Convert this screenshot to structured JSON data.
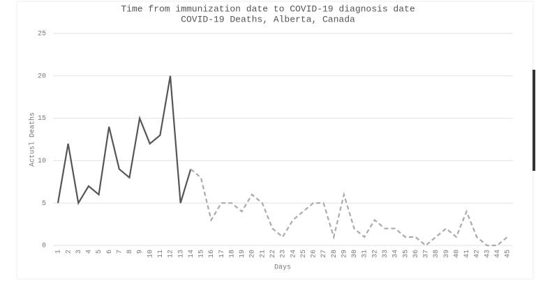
{
  "chart_data": {
    "type": "line",
    "title": "Time from immunization date to COVID-19 diagnosis date",
    "subtitle": "COVID-19 Deaths, Alberta, Canada",
    "x_label": "Days",
    "y_label": "Actusl Deaths",
    "categories": [
      "1",
      "2",
      "3",
      "4",
      "5",
      "6",
      "7",
      "8",
      "9",
      "10",
      "11",
      "12",
      "13",
      "14",
      "15",
      "16",
      "17",
      "18",
      "19",
      "20",
      "21",
      "22",
      "23",
      "24",
      "25",
      "26",
      "27",
      "28",
      "29",
      "30",
      "31",
      "32",
      "33",
      "34",
      "35",
      "36",
      "37",
      "38",
      "39",
      "40",
      "41",
      "42",
      "43",
      "44",
      "45"
    ],
    "series": [
      {
        "color": "#555555",
        "line_style": "solid",
        "values": [
          5,
          12,
          5,
          7,
          6,
          14,
          9,
          8,
          15,
          12,
          13,
          20,
          5,
          9,
          null,
          null,
          null,
          null,
          null,
          null,
          null,
          null,
          null,
          null,
          null,
          null,
          null,
          null,
          null,
          null,
          null,
          null,
          null,
          null,
          null,
          null,
          null,
          null,
          null,
          null,
          null,
          null,
          null,
          null,
          null
        ]
      },
      {
        "color": "#aaaaaa",
        "line_style": "dashed",
        "values": [
          null,
          null,
          null,
          null,
          null,
          null,
          null,
          null,
          null,
          null,
          null,
          null,
          null,
          9,
          8,
          3,
          5,
          5,
          4,
          6,
          5,
          2,
          1,
          3,
          4,
          5,
          5,
          1,
          6,
          2,
          1,
          3,
          2,
          2,
          1,
          1,
          0,
          1,
          2,
          1,
          4,
          1,
          0,
          0,
          1
        ]
      }
    ],
    "ylim": [
      0,
      25
    ],
    "yticks": [
      0,
      5,
      10,
      15,
      20,
      25
    ],
    "grid": true
  }
}
